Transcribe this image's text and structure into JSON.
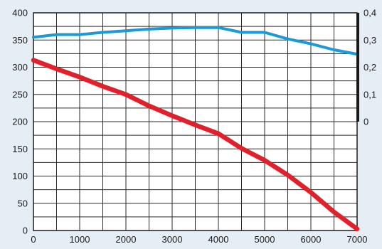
{
  "chart_data": {
    "type": "line",
    "title": "",
    "xlabel": "",
    "ylabel": "",
    "grid": true,
    "x_axis": {
      "range": [
        0,
        7000
      ],
      "ticks": [
        0,
        1000,
        2000,
        3000,
        4000,
        5000,
        6000,
        7000
      ],
      "tick_labels": [
        "0",
        "1000",
        "2000",
        "3000",
        "4000",
        "5000",
        "6000",
        "7000"
      ],
      "minor_step": 500
    },
    "y_axis_left": {
      "range": [
        0,
        400
      ],
      "ticks": [
        0,
        50,
        100,
        150,
        200,
        250,
        300,
        350,
        400
      ],
      "tick_labels": [
        "0",
        "50",
        "100",
        "150",
        "200",
        "250",
        "300",
        "350",
        "400"
      ]
    },
    "y_axis_right": {
      "range": [
        0,
        0.4
      ],
      "ticks": [
        0,
        0.1,
        0.2,
        0.3,
        0.4
      ],
      "tick_labels": [
        "0",
        "0,1",
        "0,2",
        "0,3",
        "0,4"
      ],
      "axis_span": [
        0.0,
        0.4
      ]
    },
    "series": [
      {
        "axis": "left",
        "color": "#1a9ad6",
        "x": [
          0,
          500,
          1000,
          1500,
          2000,
          2500,
          3000,
          3500,
          4000,
          4500,
          5000,
          5500,
          6000,
          6500,
          7000
        ],
        "y": [
          355,
          360,
          360,
          364,
          367,
          370,
          372,
          373,
          373,
          364,
          364,
          352,
          343,
          332,
          324
        ]
      },
      {
        "axis": "left",
        "color": "#e0202a",
        "x": [
          0,
          500,
          1000,
          1500,
          2000,
          2500,
          3000,
          3500,
          4000,
          4500,
          5000,
          5500,
          6000,
          6500,
          7000
        ],
        "y": [
          313,
          297,
          282,
          265,
          250,
          229,
          211,
          194,
          178,
          151,
          129,
          102,
          70,
          34,
          3
        ]
      }
    ]
  }
}
